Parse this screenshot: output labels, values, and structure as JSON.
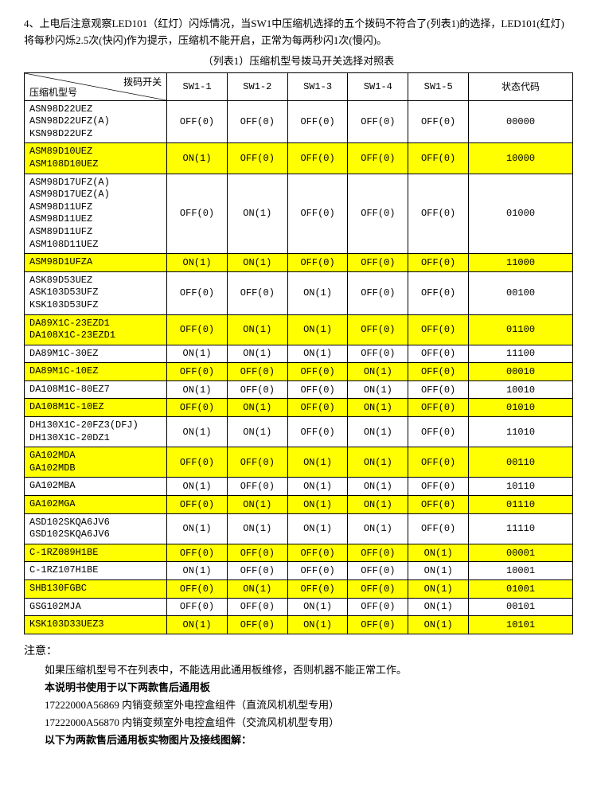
{
  "intro_text": "4、上电后注意观察LED101（红灯）闪烁情况，当SW1中压缩机选择的五个拨码不符合了(列表1)的选择，LED101(红灯)将每秒闪烁2.5次(快闪)作为提示，压缩机不能开启，正常为每两秒闪1次(慢闪)。",
  "caption": "（列表1）压缩机型号拨马开关选择对照表",
  "header": {
    "diag_top": "拨码开关",
    "diag_bottom": "压缩机型号",
    "cols": [
      "SW1-1",
      "SW1-2",
      "SW1-3",
      "SW1-4",
      "SW1-5",
      "状态代码"
    ]
  },
  "rows": [
    {
      "hl": false,
      "model": "ASN98D22UEZ\nASN98D22UFZ(A)\nKSN98D22UFZ",
      "c": [
        "OFF(0)",
        "OFF(0)",
        "OFF(0)",
        "OFF(0)",
        "OFF(0)",
        "00000"
      ]
    },
    {
      "hl": true,
      "model": "ASM89D10UEZ\nASM108D10UEZ",
      "c": [
        "ON(1)",
        "OFF(0)",
        "OFF(0)",
        "OFF(0)",
        "OFF(0)",
        "10000"
      ]
    },
    {
      "hl": false,
      "model": "ASM98D17UFZ(A)\nASM98D17UEZ(A)\nASM98D11UFZ\nASM98D11UEZ\nASM89D11UFZ\nASM108D11UEZ",
      "c": [
        "OFF(0)",
        "ON(1)",
        "OFF(0)",
        "OFF(0)",
        "OFF(0)",
        "01000"
      ]
    },
    {
      "hl": true,
      "model": "ASM98D1UFZA",
      "c": [
        "ON(1)",
        "ON(1)",
        "OFF(0)",
        "OFF(0)",
        "OFF(0)",
        "11000"
      ]
    },
    {
      "hl": false,
      "model": "ASK89D53UEZ\nASK103D53UFZ\nKSK103D53UFZ",
      "c": [
        "OFF(0)",
        "OFF(0)",
        "ON(1)",
        "OFF(0)",
        "OFF(0)",
        "00100"
      ]
    },
    {
      "hl": true,
      "model": "DA89X1C-23EZD1\nDA108X1C-23EZD1",
      "c": [
        "OFF(0)",
        "ON(1)",
        "ON(1)",
        "OFF(0)",
        "OFF(0)",
        "01100"
      ]
    },
    {
      "hl": false,
      "model": "DA89M1C-30EZ",
      "c": [
        "ON(1)",
        "ON(1)",
        "ON(1)",
        "OFF(0)",
        "OFF(0)",
        "11100"
      ]
    },
    {
      "hl": true,
      "model": "DA89M1C-10EZ",
      "c": [
        "OFF(0)",
        "OFF(0)",
        "OFF(0)",
        "ON(1)",
        "OFF(0)",
        "00010"
      ]
    },
    {
      "hl": false,
      "model": "DA108M1C-80EZ7",
      "c": [
        "ON(1)",
        "OFF(0)",
        "OFF(0)",
        "ON(1)",
        "OFF(0)",
        "10010"
      ]
    },
    {
      "hl": true,
      "model": "DA108M1C-10EZ",
      "c": [
        "OFF(0)",
        "ON(1)",
        "OFF(0)",
        "ON(1)",
        "OFF(0)",
        "01010"
      ]
    },
    {
      "hl": false,
      "model": "DH130X1C-20FZ3(DFJ)\nDH130X1C-20DZ1",
      "c": [
        "ON(1)",
        "ON(1)",
        "OFF(0)",
        "ON(1)",
        "OFF(0)",
        "11010"
      ]
    },
    {
      "hl": true,
      "model": "GA102MDA\nGA102MDB",
      "c": [
        "OFF(0)",
        "OFF(0)",
        "ON(1)",
        "ON(1)",
        "OFF(0)",
        "00110"
      ]
    },
    {
      "hl": false,
      "model": "GA102MBA",
      "c": [
        "ON(1)",
        "OFF(0)",
        "ON(1)",
        "ON(1)",
        "OFF(0)",
        "10110"
      ]
    },
    {
      "hl": true,
      "model": "GA102MGA",
      "c": [
        "OFF(0)",
        "ON(1)",
        "ON(1)",
        "ON(1)",
        "OFF(0)",
        "01110"
      ]
    },
    {
      "hl": false,
      "model": "ASD102SKQA6JV6\nGSD102SKQA6JV6",
      "c": [
        "ON(1)",
        "ON(1)",
        "ON(1)",
        "ON(1)",
        "OFF(0)",
        "11110"
      ]
    },
    {
      "hl": true,
      "model": "C-1RZ089H1BE",
      "c": [
        "OFF(0)",
        "OFF(0)",
        "OFF(0)",
        "OFF(0)",
        "ON(1)",
        "00001"
      ]
    },
    {
      "hl": false,
      "model": "C-1RZ107H1BE",
      "c": [
        "ON(1)",
        "OFF(0)",
        "OFF(0)",
        "OFF(0)",
        "ON(1)",
        "10001"
      ]
    },
    {
      "hl": true,
      "model": "SHB130FGBC",
      "c": [
        "OFF(0)",
        "ON(1)",
        "OFF(0)",
        "OFF(0)",
        "ON(1)",
        "01001"
      ]
    },
    {
      "hl": false,
      "model": "GSG102MJA",
      "c": [
        "OFF(0)",
        "OFF(0)",
        "ON(1)",
        "OFF(0)",
        "ON(1)",
        "00101"
      ]
    },
    {
      "hl": true,
      "model": "KSK103D33UEZ3",
      "c": [
        "ON(1)",
        "OFF(0)",
        "ON(1)",
        "OFF(0)",
        "ON(1)",
        "10101"
      ]
    }
  ],
  "notes": {
    "attention": "注意：",
    "line1": "如果压缩机型号不在列表中，不能选用此通用板维修，否则机器不能正常工作。",
    "line2": "本说明书使用于以下两款售后通用板",
    "line3": "17222000A56869 内销变频室外电控盒组件（直流风机机型专用）",
    "line4": "17222000A56870 内销变频室外电控盒组件（交流风机机型专用）",
    "line5": "以下为两款售后通用板实物图片及接线图解："
  },
  "style": {
    "highlight_color": "#ffff00",
    "border_color": "#000000",
    "text_color": "#000000",
    "bg_color": "#ffffff",
    "body_fontsize": 13,
    "table_fontsize": 12,
    "col_widths_pct": [
      26,
      11,
      11,
      11,
      11,
      11,
      19
    ]
  }
}
